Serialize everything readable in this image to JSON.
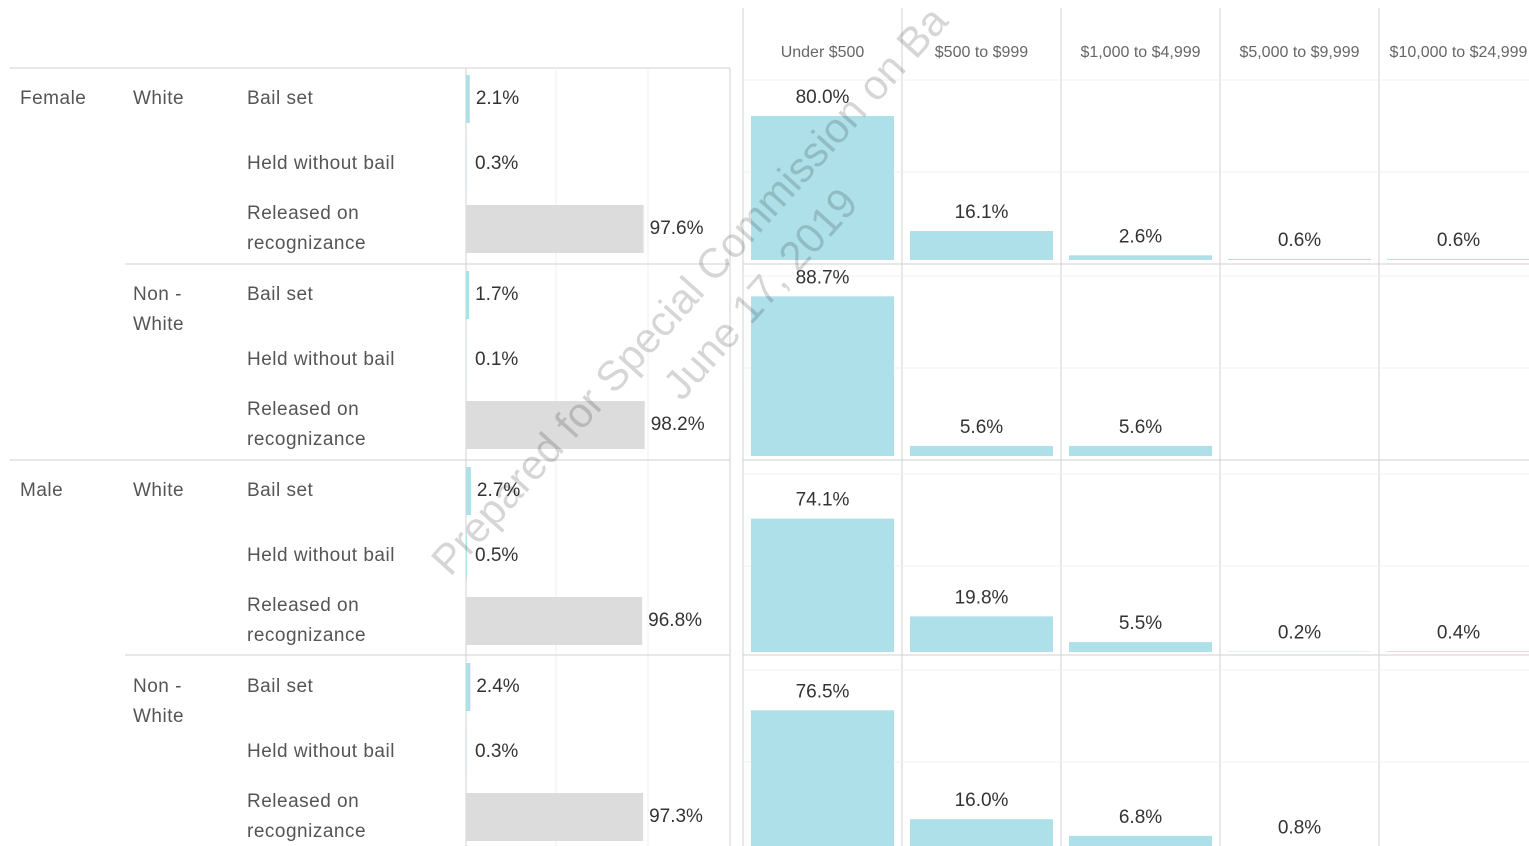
{
  "outcomes": {
    "type": "bar",
    "categories": [
      "Bail set",
      "Held without bail",
      "Released on recognizance"
    ],
    "colors": [
      "#aee0ea",
      "#aee0ea",
      "#dcdcdc"
    ],
    "xlim": [
      0,
      100
    ],
    "sexes": [
      {
        "name": "Female",
        "races": [
          {
            "name": "White",
            "values": [
              2.1,
              0.3,
              97.6
            ],
            "value_labels": [
              "2.1%",
              "0.3%",
              "97.6%"
            ]
          },
          {
            "name": "Non - White",
            "values": [
              1.7,
              0.1,
              98.2
            ],
            "value_labels": [
              "1.7%",
              "0.1%",
              "98.2%"
            ]
          }
        ]
      },
      {
        "name": "Male",
        "races": [
          {
            "name": "White",
            "values": [
              2.7,
              0.5,
              96.8
            ],
            "value_labels": [
              "2.7%",
              "0.5%",
              "96.8%"
            ]
          },
          {
            "name": "Non - White",
            "values": [
              2.4,
              0.3,
              97.3
            ],
            "value_labels": [
              "2.4%",
              "0.3%",
              "97.3%"
            ]
          }
        ]
      }
    ]
  },
  "amounts": {
    "type": "bar",
    "categories": [
      "Under $500",
      "$500 to $999",
      "$1,000 to $4,999",
      "$5,000 to $9,999",
      "$10,000 to $24,999"
    ],
    "color": "#aee0ea",
    "ylim": [
      0,
      100
    ],
    "rows": [
      {
        "values": [
          80.0,
          16.1,
          2.6,
          0.6,
          0.6
        ],
        "value_labels": [
          "80.0%",
          "16.1%",
          "2.6%",
          "0.6%",
          "0.6%"
        ]
      },
      {
        "values": [
          88.7,
          5.6,
          5.6,
          null,
          null
        ],
        "value_labels": [
          "88.7%",
          "5.6%",
          "5.6%",
          null,
          null
        ]
      },
      {
        "values": [
          74.1,
          19.8,
          5.5,
          0.2,
          0.4
        ],
        "value_labels": [
          "74.1%",
          "19.8%",
          "5.5%",
          "0.2%",
          "0.4%"
        ]
      },
      {
        "values": [
          76.5,
          16.0,
          6.8,
          0.8,
          null
        ],
        "value_labels": [
          "76.5%",
          "16.0%",
          "6.8%",
          "0.8%",
          null
        ]
      }
    ]
  },
  "watermark": [
    "Prepared for Special Commission on Ba",
    "June 17, 2019"
  ]
}
